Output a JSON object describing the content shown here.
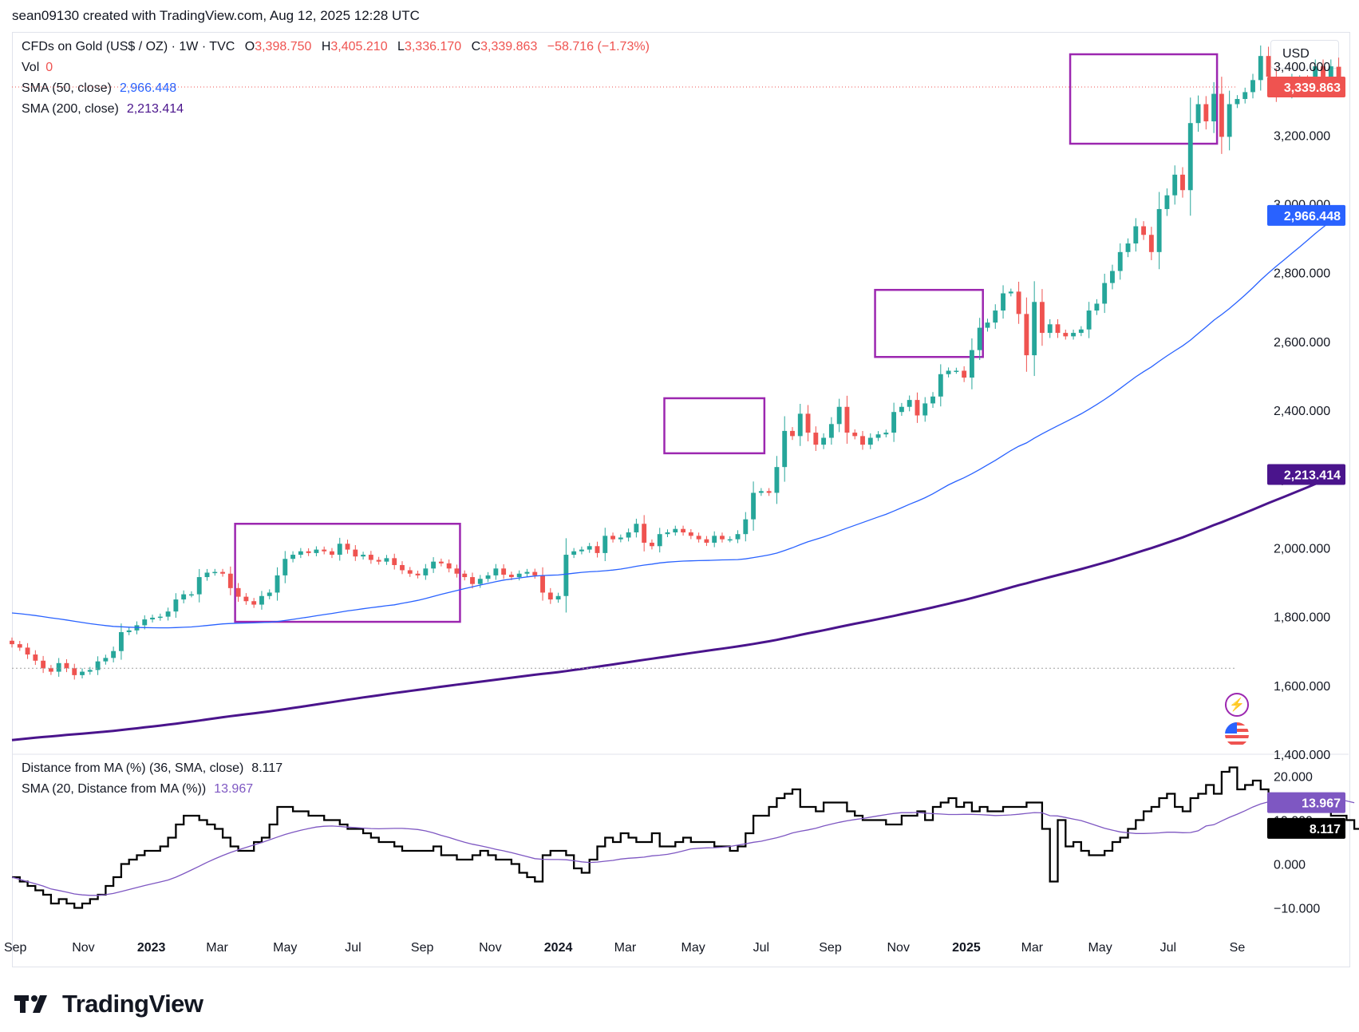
{
  "header": {
    "credit": "sean09130 created with TradingView.com, Aug 12, 2025 12:28 UTC"
  },
  "currency": "USD",
  "legend": {
    "symbol": "CFDs on Gold (US$ / OZ) · 1W · TVC",
    "open_label": "O",
    "open": "3,398.750",
    "high_label": "H",
    "high": "3,405.210",
    "low_label": "L",
    "low": "3,336.170",
    "close_label": "C",
    "close": "3,339.863",
    "change": "−58.716 (−1.73%)",
    "vol_label": "Vol",
    "vol": "0",
    "sma50_label": "SMA (50, close)",
    "sma50": "2,966.448",
    "sma200_label": "SMA (200, close)",
    "sma200": "2,213.414"
  },
  "indicator_legend": {
    "dist_label": "Distance from MA (%) (36, SMA, close)",
    "dist": "8.117",
    "sma20_label": "SMA (20, Distance from MA (%))",
    "sma20": "13.967"
  },
  "colors": {
    "up": "#26a69a",
    "down": "#ef5350",
    "sma50": "#2962ff",
    "sma200": "#4a148c",
    "box": "#9c27b0",
    "dist": "#000000",
    "sma20": "#7e57c2"
  },
  "price_badges": {
    "last": "3,339.863",
    "sma50": "2,966.448",
    "sma200": "2,213.414"
  },
  "indicator_badges": {
    "sma20": "13.967",
    "dist": "8.117"
  },
  "branding": "TradingView",
  "chart_data": [
    {
      "type": "candlestick",
      "title": "CFDs on Gold (US$ / OZ) · 1W · TVC",
      "ylim": [
        1400,
        3500
      ],
      "y_ticks": [
        "1,400.000",
        "1,600.000",
        "1,800.000",
        "2,000.000",
        "2,200.000",
        "2,400.000",
        "2,600.000",
        "2,800.000",
        "3,000.000",
        "3,200.000",
        "3,400.000"
      ],
      "y_tick_values": [
        1400,
        1600,
        1800,
        2000,
        2200,
        2400,
        2600,
        2800,
        3000,
        3200,
        3400
      ],
      "x_ticks": [
        "Sep",
        "Nov",
        "2023",
        "Mar",
        "May",
        "Jul",
        "Sep",
        "Nov",
        "2024",
        "Mar",
        "May",
        "Jul",
        "Sep",
        "Nov",
        "2025",
        "Mar",
        "May",
        "Jul",
        "Se"
      ],
      "start_date": "2022-08-29",
      "close_series": [
        1720,
        1710,
        1690,
        1672,
        1650,
        1640,
        1665,
        1650,
        1630,
        1640,
        1645,
        1670,
        1680,
        1700,
        1755,
        1760,
        1775,
        1792,
        1797,
        1800,
        1815,
        1850,
        1865,
        1865,
        1915,
        1928,
        1930,
        1925,
        1883,
        1858,
        1845,
        1835,
        1860,
        1870,
        1920,
        1968,
        1980,
        1990,
        1985,
        1995,
        1990,
        1980,
        2012,
        1995,
        1975,
        1980,
        1965,
        1960,
        1970,
        1950,
        1935,
        1925,
        1920,
        1940,
        1960,
        1955,
        1940,
        1925,
        1915,
        1895,
        1910,
        1920,
        1940,
        1922,
        1915,
        1925,
        1930,
        1920,
        1870,
        1850,
        1860,
        1980,
        1990,
        1995,
        2005,
        1985,
        2035,
        2025,
        2030,
        2045,
        2070,
        2015,
        2005,
        2040,
        2045,
        2055,
        2045,
        2035,
        2025,
        2015,
        2035,
        2025,
        2025,
        2040,
        2083,
        2160,
        2165,
        2160,
        2235,
        2340,
        2325,
        2390,
        2335,
        2300,
        2320,
        2360,
        2410,
        2335,
        2325,
        2300,
        2320,
        2330,
        2335,
        2395,
        2410,
        2430,
        2385,
        2420,
        2440,
        2505,
        2515,
        2515,
        2495,
        2575,
        2640,
        2655,
        2690,
        2740,
        2745,
        2680,
        2560,
        2715,
        2625,
        2650,
        2625,
        2615,
        2625,
        2635,
        2690,
        2710,
        2770,
        2805,
        2860,
        2885,
        2935,
        2910,
        2860,
        2985,
        3025,
        3085,
        3040,
        3235,
        3290,
        3240,
        3320,
        3195,
        3290,
        3305,
        3325,
        3360,
        3430,
        3370,
        3320,
        3325,
        3360,
        3365,
        3360,
        3400,
        3360,
        3400,
        3340
      ],
      "sma50": {
        "label": "SMA (50, close)",
        "last": 2966.448
      },
      "sma200": {
        "label": "SMA (200, close)",
        "last": 2213.414
      },
      "last_price": 3339.863,
      "consolidation_boxes": [
        {
          "from": "2023-03-20",
          "to": "2023-10-02",
          "low": 1785,
          "high": 2070
        },
        {
          "from": "2024-04-08",
          "to": "2024-07-01",
          "low": 2275,
          "high": 2435
        },
        {
          "from": "2024-10-14",
          "to": "2025-01-13",
          "low": 2555,
          "high": 2750
        },
        {
          "from": "2025-04-07",
          "to": "2025-08-11",
          "low": 3175,
          "high": 3435
        }
      ]
    },
    {
      "type": "line",
      "title": "Distance from MA (%) (36, SMA, close)",
      "ylim": [
        -15,
        25
      ],
      "y_ticks": [
        "−10.000",
        "0.000",
        "10.000",
        "20.000"
      ],
      "y_tick_values": [
        -10,
        0,
        10,
        20
      ],
      "series": [
        {
          "name": "Distance from MA (%) (36, SMA, close)",
          "step": true,
          "values": [
            -3,
            -4,
            -5,
            -6,
            -7,
            -9,
            -8,
            -9,
            -10,
            -9,
            -8,
            -7,
            -5,
            -3,
            0,
            1,
            2,
            3,
            3,
            4,
            6,
            9,
            11,
            11,
            10,
            9,
            8,
            6,
            4,
            3,
            3,
            5,
            6,
            9,
            13,
            13,
            12,
            12,
            11,
            11,
            10,
            10,
            9,
            8,
            8,
            7,
            6,
            5,
            5,
            4,
            3,
            3,
            3,
            3,
            4,
            2,
            2,
            1,
            1,
            2,
            3,
            2,
            1,
            1,
            0,
            -2,
            -3,
            -4,
            2,
            3,
            3,
            2,
            -1,
            -2,
            1,
            4,
            6,
            5,
            7,
            6,
            5,
            5,
            7,
            4,
            4,
            5,
            6,
            5,
            5,
            5,
            4,
            4,
            3,
            4,
            7,
            11,
            11,
            13,
            15,
            16,
            17,
            13,
            13,
            12,
            14,
            14,
            14,
            12,
            11,
            10,
            10,
            10,
            9,
            9,
            11,
            11,
            12,
            10,
            13,
            14,
            15,
            13,
            14,
            12,
            13,
            12,
            12,
            13,
            13,
            13,
            14,
            14,
            8,
            -4,
            10,
            4,
            5,
            3,
            2,
            2,
            3,
            5,
            6,
            8,
            10,
            12,
            13,
            15,
            16,
            13,
            12,
            15,
            16,
            18,
            16,
            21,
            22,
            17,
            18,
            19,
            17,
            15,
            15,
            15,
            14,
            12,
            12,
            13,
            12,
            11,
            11,
            10,
            8
          ]
        },
        {
          "name": "SMA (20, Distance from MA (%))",
          "step": false,
          "values": "smoothed"
        }
      ],
      "last_values": {
        "dist": 8.117,
        "sma20": 13.967
      }
    }
  ]
}
